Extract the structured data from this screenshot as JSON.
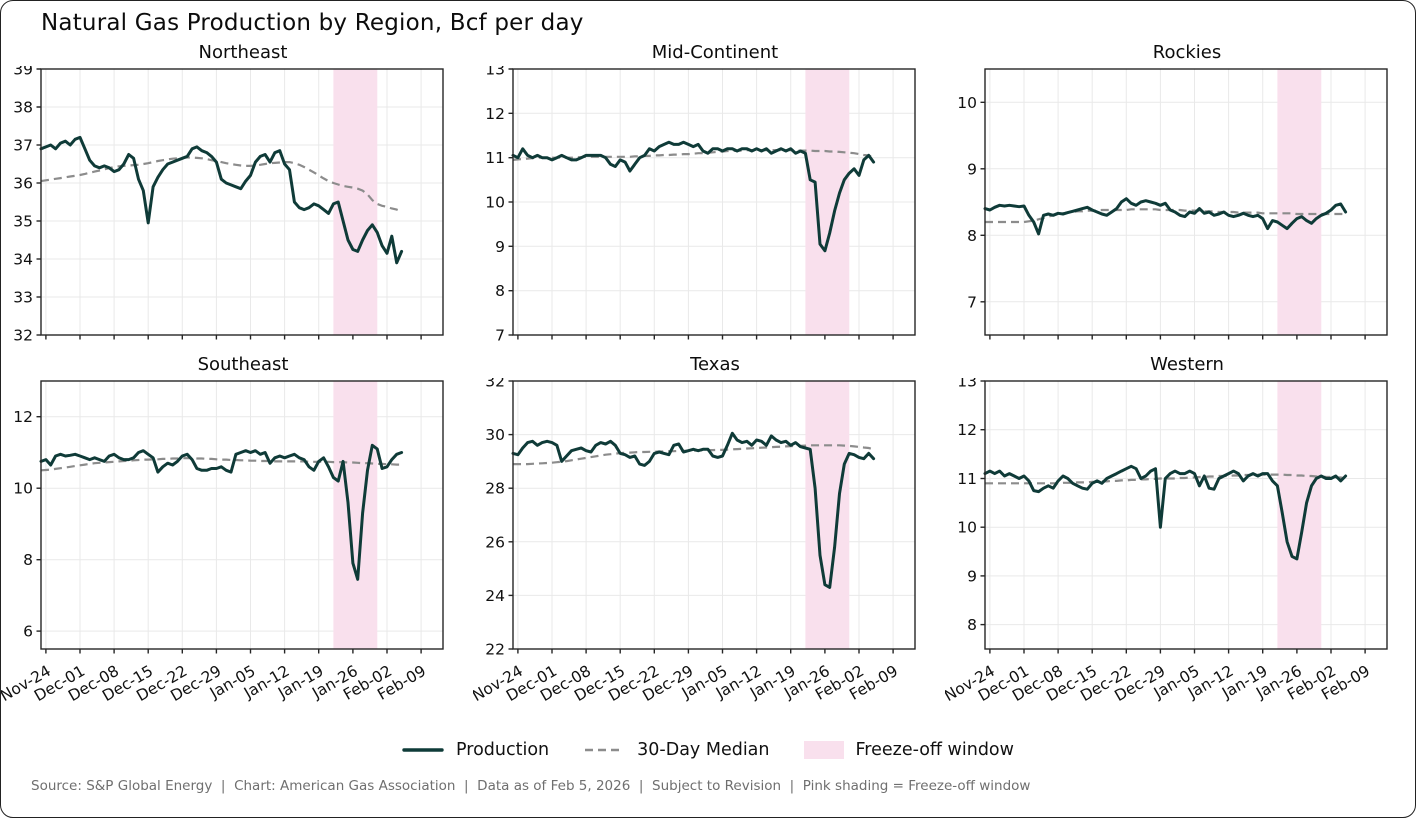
{
  "header": {
    "title": "Natural Gas Production by Region, Bcf per day"
  },
  "legend": {
    "production_label": "Production",
    "median_label": "30-Day Median",
    "freeze_label": "Freeze-off window"
  },
  "footer": {
    "text": "Source: S&P Global Energy  |  Chart: American Gas Association  |  Data as of Feb 5, 2026  |  Subject to Revision  |  Pink shading = Freeze-off window"
  },
  "colors": {
    "production": "#0f3b38",
    "median": "#8c8c8c",
    "freeze_band": "#f9e0ed",
    "grid": "#e9e9e9",
    "spine": "#262626",
    "tick_text": "#111111",
    "footer_text": "#6f6f6f"
  },
  "chart_data": {
    "type": "line",
    "title": "Natural Gas Production by Region, Bcf per day",
    "x_axis": {
      "start_date": "Nov-23",
      "end_date": "Feb-05",
      "domain_days": [
        0,
        82.5
      ],
      "tick_days": [
        1,
        8,
        15,
        22,
        29,
        36,
        43,
        50,
        57,
        64,
        71,
        78
      ],
      "tick_labels": [
        "Nov-24",
        "Dec-01",
        "Dec-08",
        "Dec-15",
        "Dec-22",
        "Dec-29",
        "Jan-05",
        "Jan-12",
        "Jan-19",
        "Jan-26",
        "Feb-02",
        "Feb-09"
      ]
    },
    "freeze_window": {
      "start_day": 60,
      "end_day": 69
    },
    "series_labels": [
      "Production",
      "30-Day Median"
    ],
    "panels": [
      {
        "title": "Northeast",
        "ylim": [
          32,
          39
        ],
        "yticks": [
          32,
          33,
          34,
          35,
          36,
          37,
          38,
          39
        ],
        "production": [
          36.9,
          36.95,
          37.0,
          36.9,
          37.05,
          37.1,
          37.0,
          37.15,
          37.2,
          36.9,
          36.6,
          36.45,
          36.4,
          36.45,
          36.4,
          36.3,
          36.35,
          36.5,
          36.75,
          36.65,
          36.1,
          35.8,
          34.95,
          35.9,
          36.15,
          36.35,
          36.5,
          36.55,
          36.6,
          36.65,
          36.7,
          36.9,
          36.95,
          36.85,
          36.8,
          36.7,
          36.55,
          36.1,
          36.0,
          35.95,
          35.9,
          35.85,
          36.05,
          36.2,
          36.55,
          36.7,
          36.75,
          36.55,
          36.8,
          36.85,
          36.5,
          36.35,
          35.5,
          35.35,
          35.3,
          35.35,
          35.45,
          35.4,
          35.3,
          35.2,
          35.45,
          35.5,
          35.0,
          34.5,
          34.25,
          34.2,
          34.5,
          34.75,
          34.9,
          34.7,
          34.35,
          34.15,
          34.6,
          33.9,
          34.2
        ],
        "median": [
          36.05,
          36.07,
          36.09,
          36.11,
          36.13,
          36.15,
          36.17,
          36.19,
          36.21,
          36.24,
          36.27,
          36.3,
          36.33,
          36.36,
          36.39,
          36.42,
          36.44,
          36.45,
          36.46,
          36.47,
          36.48,
          36.5,
          36.52,
          36.55,
          36.58,
          36.6,
          36.62,
          36.64,
          36.65,
          36.66,
          36.67,
          36.67,
          36.66,
          36.65,
          36.63,
          36.6,
          36.58,
          36.55,
          36.52,
          36.5,
          36.48,
          36.46,
          36.45,
          36.45,
          36.46,
          36.48,
          36.5,
          36.52,
          36.53,
          36.54,
          36.55,
          36.55,
          36.52,
          36.48,
          36.42,
          36.35,
          36.28,
          36.2,
          36.12,
          36.05,
          36.0,
          35.96,
          35.92,
          35.9,
          35.88,
          35.85,
          35.8,
          35.7,
          35.55,
          35.45,
          35.4,
          35.37,
          35.33,
          35.3,
          35.25
        ]
      },
      {
        "title": "Mid-Continent",
        "ylim": [
          7,
          13
        ],
        "yticks": [
          7,
          8,
          9,
          10,
          11,
          12,
          13
        ],
        "production": [
          11.05,
          11.0,
          11.2,
          11.05,
          11.0,
          11.05,
          11.0,
          11.0,
          10.95,
          11.0,
          11.05,
          11.0,
          10.95,
          10.95,
          11.0,
          11.05,
          11.05,
          11.05,
          11.05,
          11.0,
          10.85,
          10.8,
          10.95,
          10.9,
          10.7,
          10.85,
          11.0,
          11.05,
          11.2,
          11.15,
          11.25,
          11.3,
          11.35,
          11.3,
          11.3,
          11.35,
          11.3,
          11.25,
          11.3,
          11.15,
          11.1,
          11.2,
          11.2,
          11.15,
          11.2,
          11.2,
          11.15,
          11.2,
          11.2,
          11.15,
          11.2,
          11.15,
          11.2,
          11.1,
          11.15,
          11.2,
          11.15,
          11.2,
          11.1,
          11.15,
          11.1,
          10.5,
          10.45,
          9.05,
          8.9,
          9.3,
          9.8,
          10.2,
          10.5,
          10.65,
          10.75,
          10.6,
          10.95,
          11.05,
          10.9
        ],
        "median": [
          10.95,
          10.96,
          10.97,
          10.98,
          10.99,
          11.0,
          11.0,
          11.0,
          11.0,
          11.0,
          11.0,
          11.0,
          11.0,
          11.01,
          11.01,
          11.02,
          11.02,
          11.02,
          11.02,
          11.02,
          11.02,
          11.02,
          11.02,
          11.02,
          11.02,
          11.03,
          11.03,
          11.04,
          11.04,
          11.05,
          11.05,
          11.06,
          11.06,
          11.07,
          11.07,
          11.08,
          11.08,
          11.09,
          11.1,
          11.1,
          11.11,
          11.12,
          11.13,
          11.14,
          11.15,
          11.15,
          11.16,
          11.16,
          11.17,
          11.17,
          11.17,
          11.17,
          11.17,
          11.17,
          11.17,
          11.17,
          11.17,
          11.17,
          11.16,
          11.16,
          11.16,
          11.16,
          11.15,
          11.15,
          11.15,
          11.14,
          11.14,
          11.13,
          11.12,
          11.11,
          11.1,
          11.08,
          11.06,
          11.05,
          11.0
        ]
      },
      {
        "title": "Rockies",
        "ylim": [
          6.5,
          10.5
        ],
        "yticks": [
          7,
          8,
          9,
          10
        ],
        "production": [
          8.4,
          8.38,
          8.42,
          8.45,
          8.44,
          8.45,
          8.44,
          8.43,
          8.44,
          8.3,
          8.2,
          8.02,
          8.3,
          8.32,
          8.3,
          8.33,
          8.32,
          8.34,
          8.36,
          8.38,
          8.4,
          8.42,
          8.38,
          8.35,
          8.32,
          8.3,
          8.35,
          8.4,
          8.5,
          8.55,
          8.48,
          8.45,
          8.5,
          8.52,
          8.5,
          8.48,
          8.45,
          8.48,
          8.38,
          8.35,
          8.3,
          8.28,
          8.35,
          8.33,
          8.4,
          8.33,
          8.35,
          8.3,
          8.32,
          8.35,
          8.3,
          8.28,
          8.3,
          8.33,
          8.3,
          8.28,
          8.3,
          8.25,
          8.1,
          8.22,
          8.2,
          8.15,
          8.1,
          8.18,
          8.25,
          8.28,
          8.22,
          8.18,
          8.25,
          8.3,
          8.33,
          8.38,
          8.45,
          8.47,
          8.35
        ],
        "median": [
          8.2,
          8.2,
          8.2,
          8.2,
          8.2,
          8.2,
          8.2,
          8.2,
          8.2,
          8.21,
          8.22,
          8.24,
          8.26,
          8.28,
          8.3,
          8.32,
          8.33,
          8.34,
          8.35,
          8.36,
          8.36,
          8.37,
          8.37,
          8.37,
          8.38,
          8.38,
          8.38,
          8.38,
          8.38,
          8.38,
          8.39,
          8.39,
          8.39,
          8.39,
          8.39,
          8.39,
          8.38,
          8.38,
          8.38,
          8.38,
          8.38,
          8.37,
          8.37,
          8.37,
          8.37,
          8.36,
          8.36,
          8.36,
          8.35,
          8.35,
          8.35,
          8.35,
          8.34,
          8.34,
          8.34,
          8.34,
          8.34,
          8.33,
          8.33,
          8.33,
          8.33,
          8.33,
          8.33,
          8.33,
          8.32,
          8.32,
          8.32,
          8.32,
          8.32,
          8.32,
          8.32,
          8.32,
          8.32,
          8.32,
          8.32
        ]
      },
      {
        "title": "Southeast",
        "ylim": [
          5.5,
          13
        ],
        "yticks": [
          6,
          8,
          10,
          12
        ],
        "production": [
          10.75,
          10.8,
          10.65,
          10.9,
          10.95,
          10.9,
          10.92,
          10.95,
          10.9,
          10.85,
          10.8,
          10.85,
          10.8,
          10.75,
          10.9,
          10.95,
          10.85,
          10.8,
          10.8,
          10.85,
          11.0,
          11.05,
          10.95,
          10.85,
          10.45,
          10.6,
          10.7,
          10.65,
          10.75,
          10.9,
          10.95,
          10.8,
          10.55,
          10.5,
          10.5,
          10.55,
          10.55,
          10.6,
          10.5,
          10.45,
          10.95,
          11.0,
          11.05,
          11.0,
          11.05,
          10.95,
          11.0,
          10.7,
          10.85,
          10.9,
          10.85,
          10.9,
          10.95,
          10.85,
          10.8,
          10.6,
          10.5,
          10.75,
          10.85,
          10.6,
          10.3,
          10.2,
          10.75,
          9.6,
          7.9,
          7.45,
          9.3,
          10.5,
          11.2,
          11.1,
          10.55,
          10.6,
          10.8,
          10.95,
          11.0
        ],
        "median": [
          10.5,
          10.51,
          10.52,
          10.54,
          10.56,
          10.58,
          10.6,
          10.62,
          10.64,
          10.66,
          10.68,
          10.7,
          10.71,
          10.72,
          10.73,
          10.74,
          10.75,
          10.76,
          10.77,
          10.78,
          10.79,
          10.8,
          10.8,
          10.81,
          10.81,
          10.82,
          10.82,
          10.83,
          10.83,
          10.84,
          10.84,
          10.84,
          10.83,
          10.83,
          10.82,
          10.82,
          10.81,
          10.8,
          10.8,
          10.79,
          10.79,
          10.78,
          10.78,
          10.77,
          10.77,
          10.76,
          10.76,
          10.76,
          10.75,
          10.75,
          10.75,
          10.75,
          10.75,
          10.75,
          10.75,
          10.74,
          10.74,
          10.74,
          10.74,
          10.74,
          10.73,
          10.73,
          10.73,
          10.72,
          10.72,
          10.71,
          10.7,
          10.7,
          10.69,
          10.68,
          10.68,
          10.67,
          10.67,
          10.66,
          10.66
        ]
      },
      {
        "title": "Texas",
        "ylim": [
          22,
          32
        ],
        "yticks": [
          22,
          24,
          26,
          28,
          30,
          32
        ],
        "production": [
          29.3,
          29.25,
          29.5,
          29.7,
          29.75,
          29.6,
          29.7,
          29.75,
          29.7,
          29.6,
          29.0,
          29.2,
          29.4,
          29.45,
          29.5,
          29.4,
          29.35,
          29.6,
          29.7,
          29.65,
          29.75,
          29.6,
          29.3,
          29.25,
          29.15,
          29.2,
          28.9,
          28.85,
          29.0,
          29.3,
          29.35,
          29.3,
          29.25,
          29.6,
          29.65,
          29.35,
          29.4,
          29.45,
          29.4,
          29.45,
          29.45,
          29.2,
          29.15,
          29.2,
          29.6,
          30.05,
          29.8,
          29.7,
          29.75,
          29.6,
          29.8,
          29.75,
          29.6,
          29.95,
          29.8,
          29.7,
          29.75,
          29.6,
          29.7,
          29.55,
          29.5,
          29.45,
          28.0,
          25.5,
          24.4,
          24.3,
          25.8,
          27.8,
          28.9,
          29.3,
          29.25,
          29.15,
          29.1,
          29.3,
          29.1
        ],
        "median": [
          28.9,
          28.9,
          28.9,
          28.9,
          28.91,
          28.92,
          28.93,
          28.94,
          28.95,
          28.97,
          28.99,
          29.01,
          29.04,
          29.07,
          29.1,
          29.13,
          29.16,
          29.19,
          29.22,
          29.25,
          29.27,
          29.29,
          29.31,
          29.32,
          29.33,
          29.34,
          29.35,
          29.35,
          29.36,
          29.36,
          29.37,
          29.37,
          29.38,
          29.38,
          29.39,
          29.39,
          29.4,
          29.4,
          29.41,
          29.41,
          29.42,
          29.42,
          29.43,
          29.43,
          29.44,
          29.45,
          29.46,
          29.47,
          29.48,
          29.49,
          29.5,
          29.51,
          29.52,
          29.53,
          29.54,
          29.55,
          29.56,
          29.57,
          29.58,
          29.58,
          29.59,
          29.6,
          29.6,
          29.6,
          29.6,
          29.6,
          29.6,
          29.6,
          29.59,
          29.58,
          29.56,
          29.54,
          29.52,
          29.5,
          29.45
        ]
      },
      {
        "title": "Western",
        "ylim": [
          7.5,
          13
        ],
        "yticks": [
          8,
          9,
          10,
          11,
          12,
          13
        ],
        "production": [
          11.1,
          11.15,
          11.1,
          11.15,
          11.05,
          11.1,
          11.05,
          11.0,
          11.05,
          10.95,
          10.75,
          10.73,
          10.8,
          10.85,
          10.8,
          10.95,
          11.05,
          11.0,
          10.9,
          10.85,
          10.8,
          10.78,
          10.9,
          10.95,
          10.9,
          11.0,
          11.05,
          11.1,
          11.15,
          11.2,
          11.25,
          11.2,
          11.0,
          11.05,
          11.15,
          11.2,
          10.0,
          11.0,
          11.1,
          11.15,
          11.1,
          11.1,
          11.15,
          11.1,
          10.85,
          11.05,
          10.8,
          10.78,
          11.0,
          11.05,
          11.1,
          11.15,
          11.1,
          10.95,
          11.05,
          11.1,
          11.05,
          11.1,
          11.1,
          10.95,
          10.85,
          10.3,
          9.7,
          9.4,
          9.35,
          9.9,
          10.5,
          10.85,
          11.0,
          11.05,
          11.0,
          11.0,
          11.05,
          10.95,
          11.05
        ],
        "median": [
          10.9,
          10.9,
          10.9,
          10.9,
          10.9,
          10.9,
          10.9,
          10.9,
          10.9,
          10.9,
          10.9,
          10.9,
          10.9,
          10.9,
          10.9,
          10.9,
          10.91,
          10.91,
          10.91,
          10.92,
          10.92,
          10.92,
          10.93,
          10.93,
          10.94,
          10.94,
          10.95,
          10.95,
          10.96,
          10.96,
          10.97,
          10.97,
          10.98,
          10.98,
          10.99,
          10.99,
          11.0,
          11.0,
          11.0,
          11.0,
          11.01,
          11.01,
          11.02,
          11.02,
          11.03,
          11.03,
          11.04,
          11.04,
          11.05,
          11.05,
          11.05,
          11.06,
          11.06,
          11.07,
          11.07,
          11.08,
          11.08,
          11.08,
          11.08,
          11.08,
          11.08,
          11.08,
          11.07,
          11.07,
          11.06,
          11.06,
          11.05,
          11.05,
          11.04,
          11.04,
          11.03,
          11.03,
          11.02,
          11.02,
          11.0
        ]
      }
    ]
  }
}
